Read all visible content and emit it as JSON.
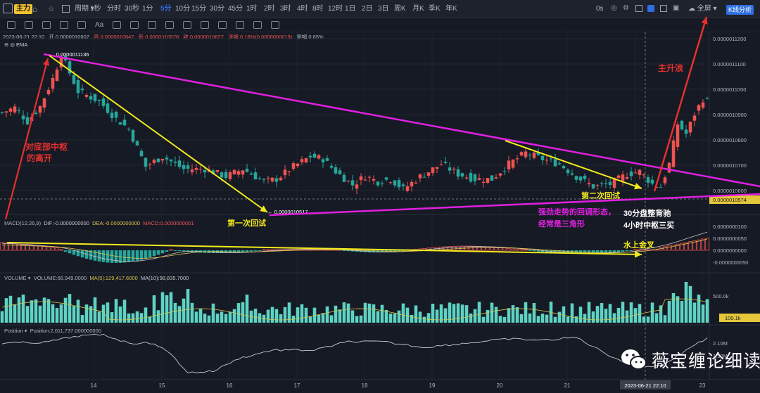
{
  "topbar": {
    "main_label": "主力",
    "period_label": "周期",
    "timeframes": [
      "1秒",
      "分时",
      "30秒",
      "1分",
      "5分",
      "10分",
      "15分",
      "30分",
      "45分",
      "1时",
      "2时",
      "3时",
      "4时",
      "8时",
      "12时",
      "1日",
      "2日",
      "3日",
      "周K",
      "月K",
      "季K",
      "年K"
    ],
    "active_timeframe": "5分",
    "countdown": "0s",
    "fullscreen_label": "全屏",
    "analysis_button": "K线分析"
  },
  "info": {
    "datetime": "2023-06-21 22:10",
    "open": "开 0.0000010607",
    "high": "高 0.0000010647",
    "low": "低 0.0000010578",
    "close": "收 0.0000010627",
    "change": "涨幅 0.18%(0.0000000019)",
    "amplitude": "振幅 0.65%",
    "indicator": "EMA"
  },
  "macd_header": {
    "name": "MACD(12,26,9)",
    "dif": "DIF:-0.0000000000",
    "dea": "DEA:-0.0000000000",
    "macd": "MACD:0.0000000001"
  },
  "volume_header": {
    "name": "VOLUME",
    "volume": "VOLUME:66,949.0000",
    "ma5": "MA(5):129,417.6000",
    "ma10": "MA(10):98,835.7000"
  },
  "position_header": {
    "name": "Position",
    "value": "Position:2,011,737.000000000"
  },
  "annotations": {
    "high_marker": "0.0000011136",
    "low_marker": "0.0000010517",
    "left_note_1": "对底部中枢",
    "left_note_2": "的离开",
    "first_pullback": "第一次回试",
    "second_pullback": "第二次回试",
    "triangle_note_1": "强劲走势的回调形态，",
    "triangle_note_2": "经常是三角形",
    "divergence_note": "30分盘整背驰",
    "pivot_note": "4小时中枢三买",
    "golden_cross": "水上金叉",
    "main_wave": "主升浪"
  },
  "colors": {
    "up": "#ef5350",
    "down": "#26a69a",
    "volume": "#5ed3c4",
    "dif": "#c9c9c9",
    "dea": "#e0c24a",
    "ma5": "#d4c64a",
    "ma10": "#c9c9c9",
    "magenta": "#e020e0",
    "yellow": "#f2ea1c",
    "red": "#e5302e",
    "last_price_bg": "#e6c63b"
  },
  "crosshair": {
    "time_label": "2023-06-21 22:10",
    "price_label": "0.0000010574",
    "volume_label": "100.1k"
  },
  "brand": {
    "name": "薇宝缠论细读"
  },
  "chart_data": {
    "type": "candlestick",
    "x_axis_labels": [
      "14",
      "15",
      "16",
      "17",
      "18",
      "19",
      "20",
      "21",
      "22",
      "23"
    ],
    "price_axis": {
      "ticks": [
        "0.0000011200",
        "0.0000011100",
        "0.0000011000",
        "0.0000010900",
        "0.0000010800",
        "0.0000010700",
        "0.0000010600",
        "0.0000010500"
      ],
      "range": [
        1.048e-06,
        1.125e-06
      ]
    },
    "macd_axis": {
      "ticks": [
        "0.0000000100",
        "0.0000000050",
        "0.0000000000",
        "-0.0000000050"
      ]
    },
    "volume_axis": {
      "ticks": [
        "500.0k"
      ]
    },
    "position_axis": {
      "ticks": [
        "2.10M",
        "1.90M"
      ]
    },
    "candle_count": 168,
    "anchor_points": [
      [
        0,
        10905
      ],
      [
        3,
        10925
      ],
      [
        6,
        10870
      ],
      [
        9,
        10930
      ],
      [
        12,
        11040
      ],
      [
        14,
        11136
      ],
      [
        18,
        10990
      ],
      [
        23,
        10950
      ],
      [
        27,
        10880
      ],
      [
        30,
        10840
      ],
      [
        34,
        10690
      ],
      [
        38,
        10730
      ],
      [
        43,
        10680
      ],
      [
        48,
        10680
      ],
      [
        53,
        10650
      ],
      [
        57,
        10680
      ],
      [
        62,
        10630
      ],
      [
        65,
        10640
      ],
      [
        69,
        10690
      ],
      [
        73,
        10730
      ],
      [
        76,
        10720
      ],
      [
        79,
        10670
      ],
      [
        83,
        10617
      ],
      [
        86,
        10652
      ],
      [
        89,
        10630
      ],
      [
        92,
        10640
      ],
      [
        95,
        10600
      ],
      [
        99,
        10650
      ],
      [
        104,
        10700
      ],
      [
        108,
        10660
      ],
      [
        112,
        10640
      ],
      [
        116,
        10640
      ],
      [
        120,
        10700
      ],
      [
        124,
        10745
      ],
      [
        128,
        10720
      ],
      [
        132,
        10700
      ],
      [
        136,
        10650
      ],
      [
        140,
        10610
      ],
      [
        144,
        10620
      ],
      [
        148,
        10660
      ],
      [
        151,
        10670
      ],
      [
        154,
        10620
      ],
      [
        156,
        10610
      ],
      [
        158,
        10700
      ],
      [
        160,
        10860
      ],
      [
        162,
        10820
      ],
      [
        164,
        10900
      ],
      [
        166,
        10960
      ],
      [
        167,
        10950
      ]
    ],
    "series": [
      {
        "name": "MACD(12,26,9)",
        "type": "histogram"
      },
      {
        "name": "VOLUME",
        "type": "bar"
      },
      {
        "name": "Position",
        "type": "line"
      }
    ],
    "grid": true
  }
}
